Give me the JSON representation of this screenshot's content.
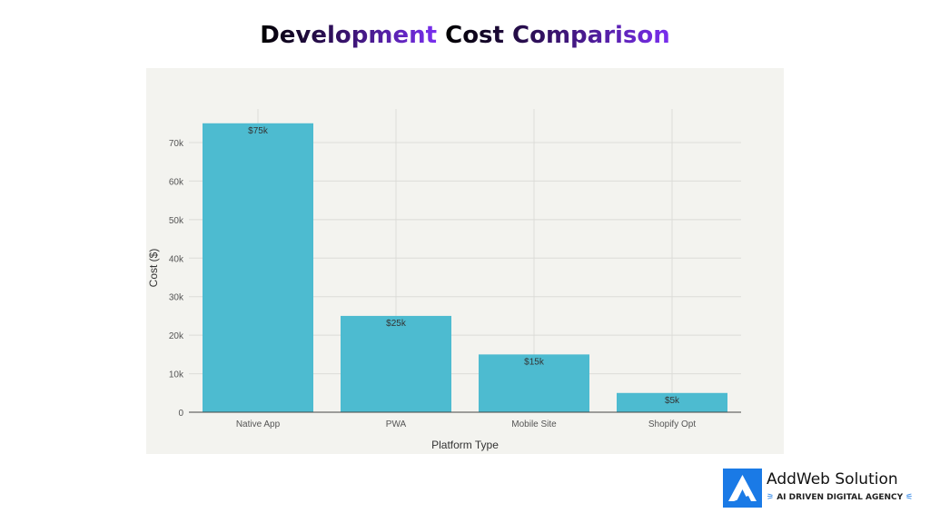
{
  "title_part1": "Development",
  "title_part2": "Cost Comparison",
  "chart_data": {
    "type": "bar",
    "title": "Development Cost Comparison",
    "xlabel": "Platform Type",
    "ylabel": "Cost ($)",
    "categories": [
      "Native App",
      "PWA",
      "Mobile Site",
      "Shopify Opt"
    ],
    "values": [
      75000,
      25000,
      15000,
      5000
    ],
    "data_labels": [
      "$75k",
      "$25k",
      "$15k",
      "$5k"
    ],
    "yticks": [
      0,
      10000,
      20000,
      30000,
      40000,
      50000,
      60000,
      70000
    ],
    "ytick_labels": [
      "0",
      "10k",
      "20k",
      "30k",
      "40k",
      "50k",
      "60k",
      "70k"
    ],
    "ylim": [
      0,
      79000
    ],
    "grid": true,
    "bar_color": "#4dbbd0"
  },
  "logo": {
    "name": "AddWeb Solution",
    "tagline": "AI DRIVEN DIGITAL AGENCY",
    "color": "#1a7ae6"
  }
}
